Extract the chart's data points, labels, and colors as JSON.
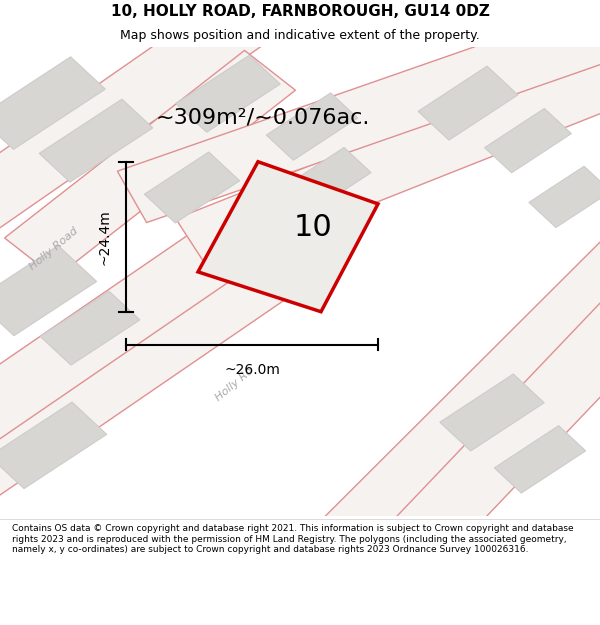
{
  "title_line1": "10, HOLLY ROAD, FARNBOROUGH, GU14 0DZ",
  "title_line2": "Map shows position and indicative extent of the property.",
  "area_text": "~309m²/~0.076ac.",
  "number_label": "10",
  "dim_height": "~24.4m",
  "dim_width": "~26.0m",
  "footer_text": "Contains OS data © Crown copyright and database right 2021. This information is subject to Crown copyright and database rights 2023 and is reproduced with the permission of HM Land Registry. The polygons (including the associated geometry, namely x, y co-ordinates) are subject to Crown copyright and database rights 2023 Ordnance Survey 100026316.",
  "map_bg": "#eeece8",
  "road_edge": "#e09090",
  "road_fill": "#f5f2ef",
  "building_fill": "#d8d6d2",
  "building_edge": "#cccccc",
  "plot_edge": "#cc0000",
  "plot_fill": "#eeece8",
  "dim_color": "#000000",
  "road_label_color": "#aaaaaa",
  "title1_size": 11,
  "title2_size": 9,
  "area_size": 16,
  "num_size": 22,
  "dim_size": 10,
  "footer_size": 6.5
}
